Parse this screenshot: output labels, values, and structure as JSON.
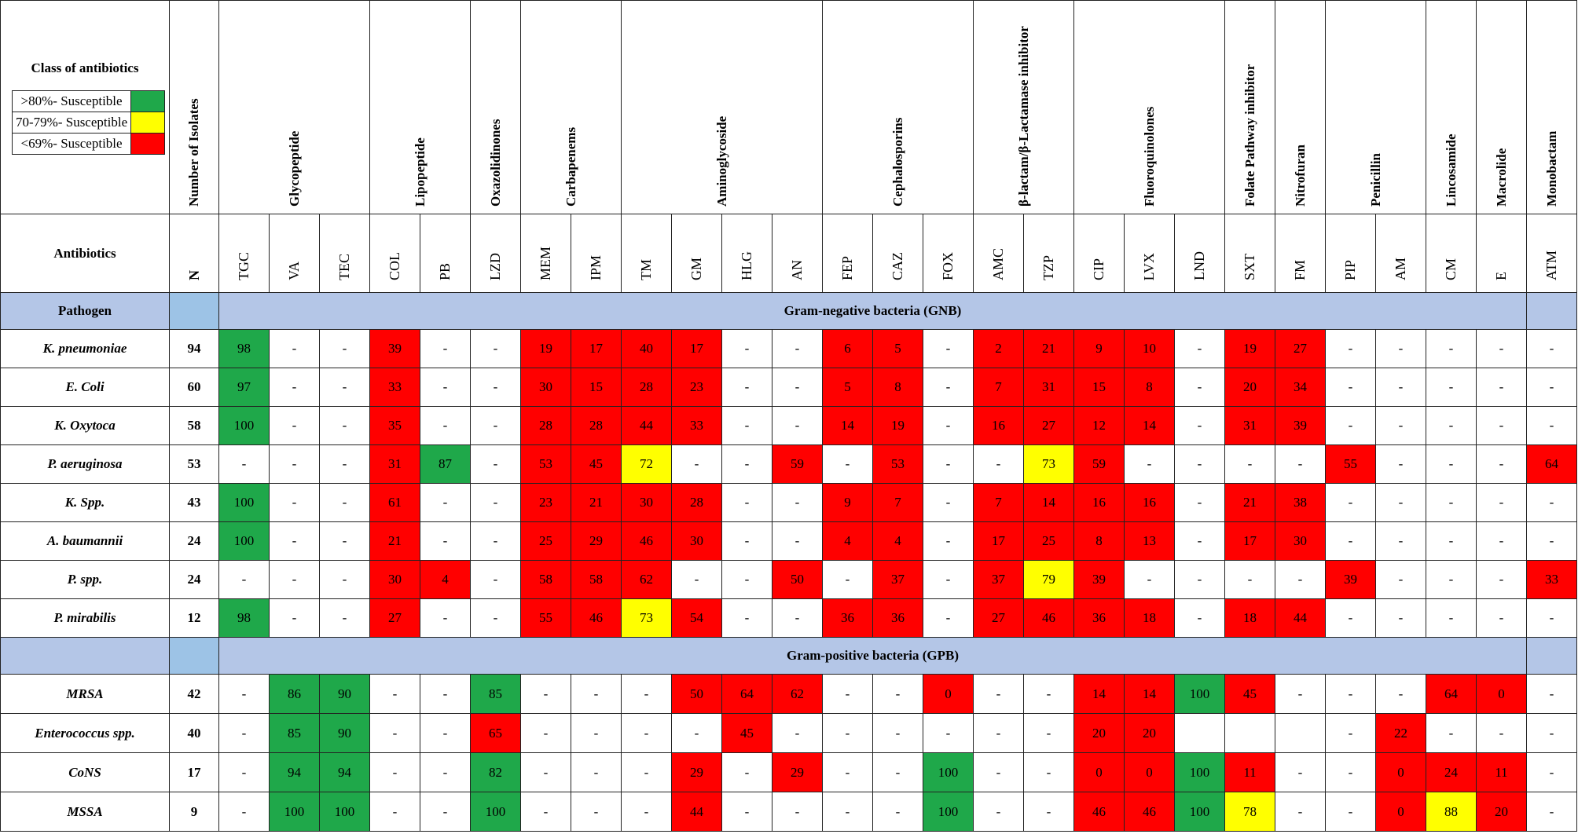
{
  "header": {
    "class_label": "Class of antibiotics",
    "antibiotics_label": "Antibiotics",
    "pathogen_label": "Pathogen",
    "isolates_label": "Number of Isolates",
    "n_label": "N"
  },
  "legend": [
    {
      "label": ">80%- Susceptible",
      "color": "#1fa84a"
    },
    {
      "label": "70-79%- Susceptible",
      "color": "#ffff00"
    },
    {
      "label": "<69%- Susceptible",
      "color": "#ff0000"
    }
  ],
  "classes": [
    {
      "name": "Glycopeptide",
      "span": 3
    },
    {
      "name": "Lipopeptide",
      "span": 2
    },
    {
      "name": "Oxazolidinones",
      "span": 1
    },
    {
      "name": "Carbapenems",
      "span": 2
    },
    {
      "name": "Aminoglycoside",
      "span": 4
    },
    {
      "name": "Cephalosporins",
      "span": 3
    },
    {
      "name": "β-lactam/β-Lactamase inhibitor",
      "span": 2
    },
    {
      "name": "Fluoroquinolones",
      "span": 3
    },
    {
      "name": "Folate Pathway inhibitor",
      "span": 1
    },
    {
      "name": "Nitrofuran",
      "span": 1
    },
    {
      "name": "Penicillin",
      "span": 2
    },
    {
      "name": "Lincosamide",
      "span": 1
    },
    {
      "name": "Macrolide",
      "span": 1
    },
    {
      "name": "Monobactam",
      "span": 1
    }
  ],
  "antibiotics": [
    "TGC",
    "VA",
    "TEC",
    "COL",
    "PB",
    "LZD",
    "MEM",
    "IPM",
    "TM",
    "GM",
    "HLG",
    "AN",
    "FEP",
    "CAZ",
    "FOX",
    "AMC",
    "TZP",
    "CIP",
    "LVX",
    "LND",
    "SXT",
    "FM",
    "PIP",
    "AM",
    "CM",
    "E",
    "ATM"
  ],
  "sections": [
    {
      "title": "Gram-negative bacteria (GNB)",
      "rows": [
        {
          "pathogen": "K. pneumoniae",
          "n": 94,
          "values": [
            98,
            "-",
            "-",
            39,
            "-",
            "-",
            19,
            17,
            40,
            17,
            "-",
            "-",
            6,
            5,
            "-",
            2,
            21,
            9,
            10,
            "-",
            19,
            27,
            "-",
            "-",
            "-",
            "-",
            "-"
          ],
          "fills": [
            "#1fa84a",
            null,
            null,
            "#ff0000",
            null,
            null,
            "#ff0000",
            "#ff0000",
            "#ff0000",
            "#ff0000",
            null,
            null,
            "#ff0000",
            "#ff0000",
            null,
            "#ff0000",
            "#ff0000",
            "#ff0000",
            "#ff0000",
            null,
            "#ff0000",
            "#ff0000",
            null,
            null,
            null,
            null,
            null
          ]
        },
        {
          "pathogen": "E. Coli",
          "n": 60,
          "values": [
            97,
            "-",
            "-",
            33,
            "-",
            "-",
            30,
            15,
            28,
            23,
            "-",
            "-",
            5,
            8,
            "-",
            7,
            31,
            15,
            8,
            "-",
            20,
            34,
            "-",
            "-",
            "-",
            "-",
            "-"
          ],
          "fills": [
            "#1fa84a",
            null,
            null,
            "#ff0000",
            null,
            null,
            "#ff0000",
            "#ff0000",
            "#ff0000",
            "#ff0000",
            null,
            null,
            "#ff0000",
            "#ff0000",
            null,
            "#ff0000",
            "#ff0000",
            "#ff0000",
            "#ff0000",
            null,
            "#ff0000",
            "#ff0000",
            null,
            null,
            null,
            null,
            null
          ]
        },
        {
          "pathogen": "K. Oxytoca",
          "n": 58,
          "values": [
            100,
            "-",
            "-",
            35,
            "-",
            "-",
            28,
            28,
            44,
            33,
            "-",
            "-",
            14,
            19,
            "-",
            16,
            27,
            12,
            14,
            "-",
            31,
            39,
            "-",
            "-",
            "-",
            "-",
            "-"
          ],
          "fills": [
            "#1fa84a",
            null,
            null,
            "#ff0000",
            null,
            null,
            "#ff0000",
            "#ff0000",
            "#ff0000",
            "#ff0000",
            null,
            null,
            "#ff0000",
            "#ff0000",
            null,
            "#ff0000",
            "#ff0000",
            "#ff0000",
            "#ff0000",
            null,
            "#ff0000",
            "#ff0000",
            null,
            null,
            null,
            null,
            null
          ]
        },
        {
          "pathogen": "P. aeruginosa",
          "n": 53,
          "values": [
            "-",
            "-",
            "-",
            31,
            87,
            "-",
            53,
            45,
            72,
            "-",
            "-",
            59,
            "-",
            53,
            "-",
            "-",
            73,
            59,
            "-",
            "-",
            "-",
            "-",
            55,
            "-",
            "-",
            "-",
            64
          ],
          "fills": [
            null,
            null,
            null,
            "#ff0000",
            "#1fa84a",
            null,
            "#ff0000",
            "#ff0000",
            "#ffff00",
            null,
            null,
            "#ff0000",
            null,
            "#ff0000",
            null,
            null,
            "#ffff00",
            "#ff0000",
            null,
            null,
            null,
            null,
            "#ff0000",
            null,
            null,
            null,
            "#ff0000"
          ]
        },
        {
          "pathogen": "K. Spp.",
          "n": 43,
          "values": [
            100,
            "-",
            "-",
            61,
            "-",
            "-",
            23,
            21,
            30,
            28,
            "-",
            "-",
            9,
            7,
            "-",
            7,
            14,
            16,
            16,
            "-",
            21,
            38,
            "-",
            "-",
            "-",
            "-",
            "-"
          ],
          "fills": [
            "#1fa84a",
            null,
            null,
            "#ff0000",
            null,
            null,
            "#ff0000",
            "#ff0000",
            "#ff0000",
            "#ff0000",
            null,
            null,
            "#ff0000",
            "#ff0000",
            null,
            "#ff0000",
            "#ff0000",
            "#ff0000",
            "#ff0000",
            null,
            "#ff0000",
            "#ff0000",
            null,
            null,
            null,
            null,
            null
          ]
        },
        {
          "pathogen": "A. baumannii",
          "n": 24,
          "values": [
            100,
            "-",
            "-",
            21,
            "-",
            "-",
            25,
            29,
            46,
            30,
            "-",
            "-",
            4,
            4,
            "-",
            17,
            25,
            8,
            13,
            "-",
            17,
            30,
            "-",
            "-",
            "-",
            "-",
            "-"
          ],
          "fills": [
            "#1fa84a",
            null,
            null,
            "#ff0000",
            null,
            null,
            "#ff0000",
            "#ff0000",
            "#ff0000",
            "#ff0000",
            null,
            null,
            "#ff0000",
            "#ff0000",
            null,
            "#ff0000",
            "#ff0000",
            "#ff0000",
            "#ff0000",
            null,
            "#ff0000",
            "#ff0000",
            null,
            null,
            null,
            null,
            null
          ]
        },
        {
          "pathogen": "P. spp.",
          "n": 24,
          "values": [
            "-",
            "-",
            "-",
            30,
            4,
            "-",
            58,
            58,
            62,
            "-",
            "-",
            50,
            "-",
            37,
            "-",
            37,
            79,
            39,
            "-",
            "-",
            "-",
            "-",
            39,
            "-",
            "-",
            "-",
            33
          ],
          "fills": [
            null,
            null,
            null,
            "#ff0000",
            "#ff0000",
            null,
            "#ff0000",
            "#ff0000",
            "#ff0000",
            null,
            null,
            "#ff0000",
            null,
            "#ff0000",
            null,
            "#ff0000",
            "#ffff00",
            "#ff0000",
            null,
            null,
            null,
            null,
            "#ff0000",
            null,
            null,
            null,
            "#ff0000"
          ]
        },
        {
          "pathogen": "P. mirabilis",
          "n": 12,
          "values": [
            98,
            "-",
            "-",
            27,
            "-",
            "-",
            55,
            46,
            73,
            54,
            "-",
            "-",
            36,
            36,
            "-",
            27,
            46,
            36,
            18,
            "-",
            18,
            44,
            "-",
            "-",
            "-",
            "-",
            "-"
          ],
          "fills": [
            "#1fa84a",
            null,
            null,
            "#ff0000",
            null,
            null,
            "#ff0000",
            "#ff0000",
            "#ffff00",
            "#ff0000",
            null,
            null,
            "#ff0000",
            "#ff0000",
            null,
            "#ff0000",
            "#ff0000",
            "#ff0000",
            "#ff0000",
            null,
            "#ff0000",
            "#ff0000",
            null,
            null,
            null,
            null,
            null
          ]
        }
      ]
    },
    {
      "title": "Gram-positive bacteria (GPB)",
      "rows": [
        {
          "pathogen": "MRSA",
          "n": 42,
          "values": [
            "-",
            86,
            90,
            "-",
            "-",
            85,
            "-",
            "-",
            "-",
            50,
            64,
            62,
            "-",
            "-",
            0,
            "-",
            "-",
            14,
            14,
            100,
            45,
            "-",
            "-",
            "-",
            64,
            0,
            "-"
          ],
          "fills": [
            null,
            "#1fa84a",
            "#1fa84a",
            null,
            null,
            "#1fa84a",
            null,
            null,
            null,
            "#ff0000",
            "#ff0000",
            "#ff0000",
            null,
            null,
            "#ff0000",
            null,
            null,
            "#ff0000",
            "#ff0000",
            "#1fa84a",
            "#ff0000",
            null,
            null,
            null,
            "#ff0000",
            "#ff0000",
            null
          ]
        },
        {
          "pathogen": "Enterococcus spp.",
          "n": 40,
          "values": [
            "-",
            85,
            90,
            "-",
            "-",
            65,
            "-",
            "-",
            "-",
            "-",
            45,
            "-",
            "-",
            "-",
            "-",
            "-",
            "-",
            20,
            20,
            null,
            null,
            null,
            "-",
            22,
            "-",
            "-",
            "-"
          ],
          "fills": [
            null,
            "#1fa84a",
            "#1fa84a",
            null,
            null,
            "#ff0000",
            null,
            null,
            null,
            null,
            "#ff0000",
            null,
            null,
            null,
            null,
            null,
            null,
            "#ff0000",
            "#ff0000",
            null,
            null,
            null,
            null,
            "#ff0000",
            null,
            null,
            null
          ]
        },
        {
          "pathogen": "CoNS",
          "n": 17,
          "values": [
            "-",
            94,
            94,
            "-",
            "-",
            82,
            "-",
            "-",
            "-",
            29,
            "-",
            29,
            "-",
            "-",
            100,
            "-",
            "-",
            0,
            0,
            100,
            11,
            "-",
            "-",
            0,
            24,
            11,
            "-"
          ],
          "fills": [
            null,
            "#1fa84a",
            "#1fa84a",
            null,
            null,
            "#1fa84a",
            null,
            null,
            null,
            "#ff0000",
            null,
            "#ff0000",
            null,
            null,
            "#1fa84a",
            null,
            null,
            "#ff0000",
            "#ff0000",
            "#1fa84a",
            "#ff0000",
            null,
            null,
            "#ff0000",
            "#ff0000",
            "#ff0000",
            null
          ]
        },
        {
          "pathogen": "MSSA",
          "n": 9,
          "values": [
            "-",
            100,
            100,
            "-",
            "-",
            100,
            "-",
            "-",
            "-",
            44,
            "-",
            "-",
            "-",
            "-",
            100,
            "-",
            "-",
            46,
            46,
            100,
            78,
            "-",
            "-",
            0,
            88,
            20,
            "-"
          ],
          "fills": [
            null,
            "#1fa84a",
            "#1fa84a",
            null,
            null,
            "#1fa84a",
            null,
            null,
            null,
            "#ff0000",
            null,
            null,
            null,
            null,
            "#1fa84a",
            null,
            null,
            "#ff0000",
            "#ff0000",
            "#1fa84a",
            "#ffff00",
            null,
            null,
            "#ff0000",
            "#ffff00",
            "#ff0000",
            null
          ]
        }
      ]
    }
  ]
}
